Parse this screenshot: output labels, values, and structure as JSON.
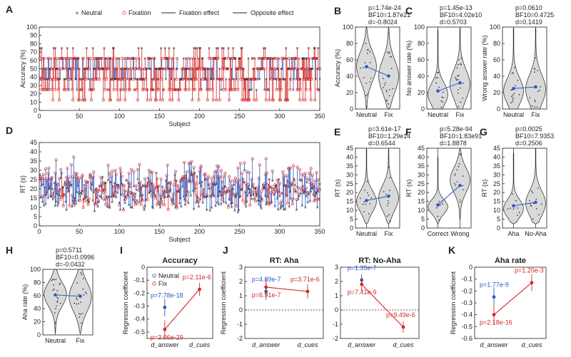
{
  "colors": {
    "red": "#d62728",
    "blue": "#2b59c3",
    "violin": "#d9d9d9",
    "dark": "#222222"
  },
  "chart_data": [
    {
      "id": "A",
      "type": "scatter",
      "title": "",
      "legend": [
        "Neutral",
        "Fixation",
        "Fixation effect",
        "Opposite effect"
      ],
      "xlabel": "Subject",
      "ylabel": "Accuracy (%)",
      "xlim": [
        0,
        350
      ],
      "ylim": [
        0,
        100
      ],
      "xticks": [
        0,
        50,
        100,
        150,
        200,
        250,
        300,
        350
      ],
      "yticks": [
        0,
        10,
        20,
        30,
        40,
        50,
        60,
        70,
        80,
        90,
        100
      ],
      "n_subjects": 350,
      "series_summary": {
        "neutral_mean": 51.7,
        "fixation_mean": 40.3
      }
    },
    {
      "id": "B",
      "type": "violin",
      "ylabel": "Accuracy (%)",
      "categories": [
        "Neutral",
        "Fix"
      ],
      "means": [
        51.7,
        40.3
      ],
      "ylim": [
        0,
        100
      ],
      "yticks": [
        0,
        20,
        40,
        60,
        80,
        100
      ],
      "stats": [
        "p=1.74e-24",
        "BF10=1.87e21",
        "d=-0.8024"
      ]
    },
    {
      "id": "C1",
      "type": "violin",
      "ylabel": "No answer rate (%)",
      "categories": [
        "Neutral",
        "Fix"
      ],
      "means": [
        22,
        32
      ],
      "ylim": [
        0,
        100
      ],
      "yticks": [
        0,
        20,
        40,
        60,
        80,
        100
      ],
      "stats": [
        "p=1.45e-13",
        "BF10=4.02e10",
        "d=0.5703"
      ]
    },
    {
      "id": "C2",
      "type": "violin",
      "ylabel": "Wrong answer rate (%)",
      "categories": [
        "Neutral",
        "Fix"
      ],
      "means": [
        25,
        27
      ],
      "ylim": [
        0,
        100
      ],
      "yticks": [
        0,
        20,
        40,
        60,
        80,
        100
      ],
      "stats": [
        "p=0.0610",
        "BF10=0.4725",
        "d=0.1419"
      ]
    },
    {
      "id": "D",
      "type": "scatter",
      "xlabel": "Subject",
      "ylabel": "RT (s)",
      "xlim": [
        0,
        350
      ],
      "ylim": [
        0,
        45
      ],
      "xticks": [
        0,
        50,
        100,
        150,
        200,
        250,
        300,
        350
      ],
      "yticks": [
        0,
        5,
        10,
        15,
        20,
        25,
        30,
        35,
        40,
        45
      ],
      "n_subjects": 350
    },
    {
      "id": "E",
      "type": "violin",
      "ylabel": "RT (s)",
      "categories": [
        "Neutral",
        "Fix"
      ],
      "means": [
        15.5,
        18
      ],
      "ylim": [
        0,
        45
      ],
      "yticks": [
        0,
        5,
        10,
        15,
        20,
        25,
        30,
        35,
        40,
        45
      ],
      "stats": [
        "p=3.61e-17",
        "BF10=1.29e14",
        "d=0.6544"
      ]
    },
    {
      "id": "F",
      "type": "violin",
      "ylabel": "RT (s)",
      "categories": [
        "Correct",
        "Wrong"
      ],
      "means": [
        13,
        24
      ],
      "ylim": [
        0,
        45
      ],
      "yticks": [
        0,
        5,
        10,
        15,
        20,
        25,
        30,
        35,
        40,
        45
      ],
      "stats": [
        "p=5.28e-94",
        "BF10=1.83e91",
        "d=1.8878"
      ]
    },
    {
      "id": "G",
      "type": "violin",
      "ylabel": "RT (s)",
      "categories": [
        "Aha",
        "No-Aha"
      ],
      "means": [
        12.5,
        14.5
      ],
      "ylim": [
        0,
        45
      ],
      "yticks": [
        0,
        5,
        10,
        15,
        20,
        25,
        30,
        35,
        40,
        45
      ],
      "stats": [
        "p=0.0025",
        "BF10=7.9353",
        "d=0.2506"
      ]
    },
    {
      "id": "H",
      "type": "violin",
      "ylabel": "Aha rate (%)",
      "categories": [
        "Neutral",
        "Fix"
      ],
      "means": [
        61,
        59
      ],
      "ylim": [
        0,
        100
      ],
      "yticks": [
        0,
        20,
        40,
        60,
        80,
        100
      ],
      "stats": [
        "p=0.5711",
        "BF10=0.0996",
        "d=-0.0432"
      ]
    },
    {
      "id": "I",
      "type": "line",
      "title": "Accuracy",
      "ylabel": "Regression coefficient",
      "categories": [
        "d_answer",
        "d_cues"
      ],
      "ylim": [
        -0.55,
        0.0
      ],
      "yticks": [
        0,
        -0.1,
        -0.2,
        -0.3,
        -0.4,
        -0.5
      ],
      "legend": [
        "Neutral",
        "Fix"
      ],
      "series": [
        {
          "name": "Neutral",
          "values": [
            -0.31,
            null
          ],
          "err": [
            0.07,
            null
          ],
          "pvals": [
            "p=7.78e-18",
            ""
          ]
        },
        {
          "name": "Fix",
          "values": [
            -0.48,
            -0.17
          ],
          "err": [
            0.07,
            0.05
          ],
          "pvals": [
            "p=3.06e-29",
            "p=2.11e-6"
          ]
        }
      ]
    },
    {
      "id": "J1",
      "type": "line",
      "title": "RT: Aha",
      "ylabel": "Regression coefficient",
      "categories": [
        "d_answer",
        "d_cues"
      ],
      "ylim": [
        -2,
        3
      ],
      "yticks": [
        -2,
        -1,
        0,
        1,
        2,
        3
      ],
      "series": [
        {
          "name": "Neutral",
          "values": [
            1.3,
            null
          ],
          "err": [
            0.6,
            null
          ],
          "pvals": [
            "p=4.89e-7",
            ""
          ]
        },
        {
          "name": "Fix",
          "values": [
            1.6,
            1.3
          ],
          "err": [
            0.6,
            0.5
          ],
          "pvals": [
            "p=6.91e-7",
            "p=3.71e-6"
          ]
        }
      ]
    },
    {
      "id": "J2",
      "type": "line",
      "title": "RT: No-Aha",
      "ylabel": "",
      "categories": [
        "d_answer",
        "d_cues"
      ],
      "ylim": [
        -2,
        3
      ],
      "yticks": [
        -2,
        -1,
        0,
        1,
        2,
        3
      ],
      "series": [
        {
          "name": "Neutral",
          "values": [
            2.1,
            null
          ],
          "err": [
            0.4,
            null
          ],
          "pvals": [
            "p=1.35e-7",
            ""
          ]
        },
        {
          "name": "Fix",
          "values": [
            1.8,
            -1.2
          ],
          "err": [
            0.5,
            0.4
          ],
          "pvals": [
            "p=7.41e-9",
            "p=9.49e-6"
          ]
        }
      ]
    },
    {
      "id": "K",
      "type": "line",
      "title": "Aha rate",
      "ylabel": "Regression coefficient",
      "categories": [
        "d_answer",
        "d_cues"
      ],
      "ylim": [
        -0.6,
        0.0
      ],
      "yticks": [
        0,
        -0.1,
        -0.2,
        -0.3,
        -0.4,
        -0.5,
        -0.6
      ],
      "series": [
        {
          "name": "Neutral",
          "values": [
            -0.25,
            null
          ],
          "err": [
            0.08,
            null
          ],
          "pvals": [
            "p=1.77e-9",
            ""
          ]
        },
        {
          "name": "Fix",
          "values": [
            -0.4,
            -0.13
          ],
          "err": [
            0.08,
            0.07
          ],
          "pvals": [
            "p=2.18e-16",
            "p=1.20e-3"
          ]
        }
      ]
    }
  ]
}
